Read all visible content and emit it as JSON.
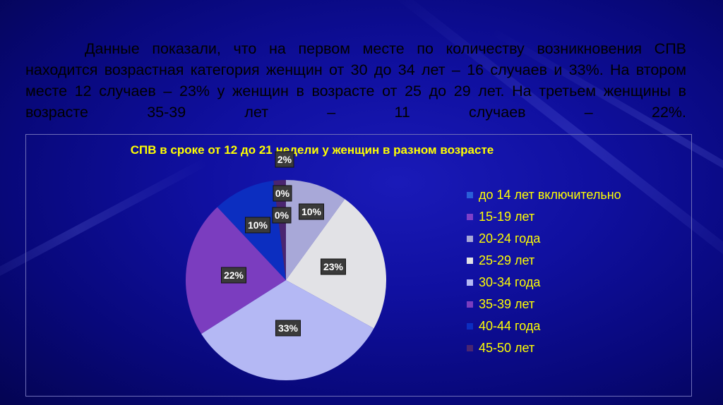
{
  "intro_text": "Данные показали, что на первом месте по количеству возникновения СПВ находится возрастная категория женщин от 30 до 34 лет – 16 случаев и 33%. На втором месте 12 случаев – 23% у женщин в возрасте от 25 до 29 лет. На третьем женщины в возрасте 35-39 лет – 11 случаев – 22%.",
  "chart_data": {
    "type": "pie",
    "title": "СПВ в сроке от 12 до 21 недели у женщин в разном возрасте",
    "legend_position": "right",
    "slices": [
      {
        "label": "до 14 лет включительно",
        "value": 0,
        "data_label": "0%",
        "color": "#2a5fd8"
      },
      {
        "label": "15-19 лет",
        "value": 0,
        "data_label": "0%",
        "color": "#7e3fc8"
      },
      {
        "label": "20-24 года",
        "value": 10,
        "data_label": "10%",
        "color": "#a8a8d8"
      },
      {
        "label": "25-29 лет",
        "value": 23,
        "data_label": "23%",
        "color": "#e2e2e6"
      },
      {
        "label": "30-34 года",
        "value": 33,
        "data_label": "33%",
        "color": "#b4b8f4"
      },
      {
        "label": "35-39 лет",
        "value": 22,
        "data_label": "22%",
        "color": "#7b3dbf"
      },
      {
        "label": "40-44 года",
        "value": 10,
        "data_label": "10%",
        "color": "#0c2ec0"
      },
      {
        "label": "45-50 лет",
        "value": 2,
        "data_label": "2%",
        "color": "#4a2570"
      }
    ]
  }
}
